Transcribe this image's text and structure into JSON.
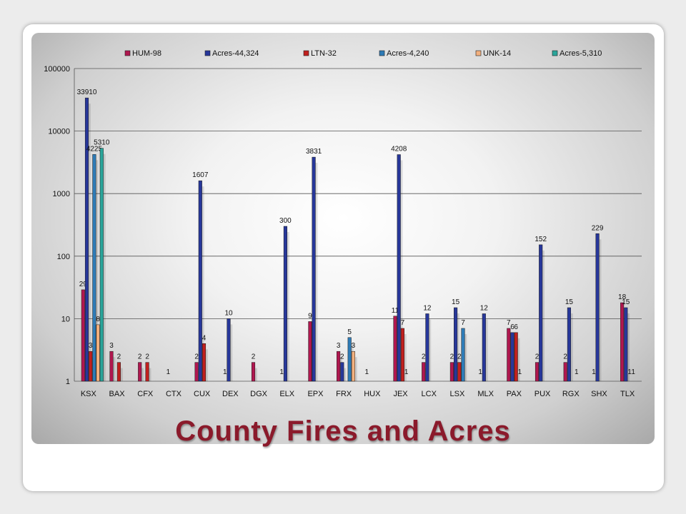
{
  "slide": {
    "title": "County Fires and Acres"
  },
  "chart_data": {
    "type": "bar",
    "yscale": "log",
    "ylim": [
      1,
      100000
    ],
    "yticks": [
      "1",
      "10",
      "100",
      "1000",
      "10000",
      "100000"
    ],
    "grid": true,
    "legend_position": "top",
    "categories": [
      "KSX",
      "BAX",
      "CFX",
      "CTX",
      "CUX",
      "DEX",
      "DGX",
      "ELX",
      "EPX",
      "FRX",
      "HUX",
      "JEX",
      "LCX",
      "LSX",
      "MLX",
      "PAX",
      "PUX",
      "RGX",
      "SHX",
      "TLX"
    ],
    "series": [
      {
        "name": "HUM-98",
        "color": "#b0174f",
        "values": [
          29,
          3,
          2,
          null,
          2,
          null,
          2,
          null,
          9,
          3,
          null,
          11,
          2,
          2,
          null,
          7,
          2,
          2,
          null,
          18
        ],
        "labels": [
          "29",
          "3",
          "2",
          "1",
          "2",
          "1",
          "2",
          "1",
          "9",
          "3",
          "1",
          "11",
          "2",
          "2",
          "1",
          "7",
          "2",
          "2",
          "1",
          "18"
        ]
      },
      {
        "name": "Acres-44,324",
        "color": "#27379a",
        "values": [
          33910,
          null,
          null,
          null,
          1607,
          10,
          null,
          300,
          3831,
          2,
          null,
          4208,
          12,
          15,
          12,
          6,
          152,
          15,
          229,
          15
        ],
        "labels": [
          "33910",
          "",
          "",
          "",
          "1607",
          "10",
          "",
          "300",
          "3831",
          "2",
          "",
          "4208",
          "12",
          "15",
          "12",
          "6",
          "152",
          "15",
          "229",
          "15"
        ]
      },
      {
        "name": "LTN-32",
        "color": "#c1201e",
        "values": [
          3,
          2,
          2,
          null,
          4,
          null,
          null,
          null,
          null,
          null,
          null,
          7,
          null,
          2,
          null,
          6,
          null,
          null,
          null,
          null
        ],
        "labels": [
          "3",
          "2",
          "2",
          "",
          "4",
          "",
          "",
          "",
          "",
          "",
          "",
          "7",
          "",
          "2",
          "",
          "6",
          "",
          "",
          "",
          "1"
        ]
      },
      {
        "name": "Acres-4,240",
        "color": "#2e7bb6",
        "values": [
          4225,
          null,
          null,
          null,
          null,
          null,
          null,
          null,
          null,
          5,
          null,
          null,
          null,
          7,
          null,
          null,
          null,
          null,
          null,
          null
        ],
        "labels": [
          "4225",
          "",
          "",
          "",
          "",
          "",
          "",
          "",
          "",
          "5",
          "",
          "1",
          "",
          "7",
          "",
          "1",
          "",
          "1",
          "",
          "1"
        ]
      },
      {
        "name": "UNK-14",
        "color": "#f2b07e",
        "values": [
          8,
          null,
          null,
          null,
          null,
          null,
          null,
          null,
          null,
          3,
          null,
          null,
          null,
          null,
          null,
          null,
          null,
          null,
          null,
          null
        ],
        "labels": [
          "8",
          "",
          "",
          "",
          "",
          "",
          "",
          "",
          "",
          "3",
          "",
          "",
          "",
          "",
          "",
          "",
          "",
          "",
          "",
          ""
        ]
      },
      {
        "name": "Acres-5,310",
        "color": "#2aa59a",
        "values": [
          5310,
          null,
          null,
          null,
          null,
          null,
          null,
          null,
          null,
          null,
          null,
          null,
          null,
          null,
          null,
          null,
          null,
          null,
          null,
          null
        ],
        "labels": [
          "5310",
          "",
          "",
          "",
          "",
          "",
          "",
          "",
          "",
          "",
          "",
          "",
          "",
          "",
          "",
          "",
          "",
          "",
          "",
          ""
        ]
      }
    ]
  }
}
